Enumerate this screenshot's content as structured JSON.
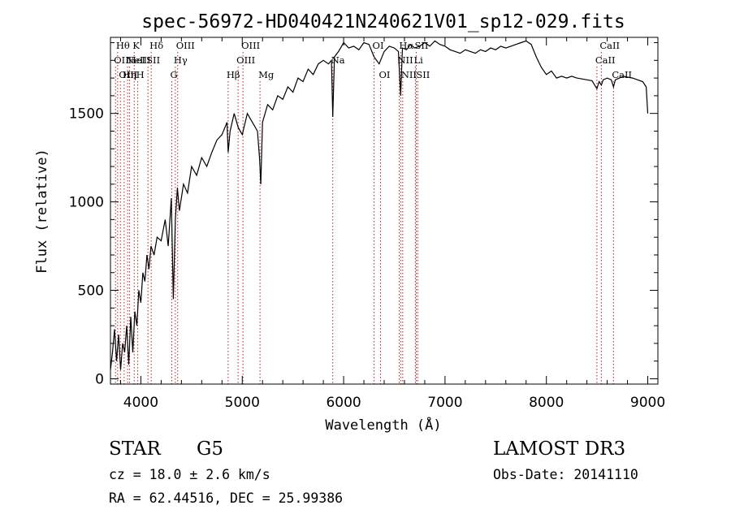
{
  "chart_data": {
    "type": "line",
    "title": "spec-56972-HD040421N240621V01_sp12-029.fits",
    "xlabel": "Wavelength (Å)",
    "ylabel": "Flux (relative)",
    "xlim": [
      3700,
      9100
    ],
    "ylim": [
      -30,
      1930
    ],
    "xticks": [
      4000,
      5000,
      6000,
      7000,
      8000,
      9000
    ],
    "yticks": [
      0,
      500,
      1000,
      1500
    ],
    "grid": false,
    "line_color": "#000000",
    "marker_color": "#b22222",
    "series": [
      {
        "x": [
          3700,
          3720,
          3740,
          3760,
          3780,
          3800,
          3820,
          3840,
          3860,
          3880,
          3900,
          3920,
          3940,
          3960,
          3980,
          4000,
          4020,
          4040,
          4060,
          4080,
          4100,
          4130,
          4160,
          4200,
          4240,
          4270,
          4300,
          4320,
          4340,
          4360,
          4380,
          4420,
          4460,
          4500,
          4550,
          4600,
          4650,
          4700,
          4750,
          4800,
          4850,
          4861,
          4880,
          4920,
          4960,
          5000,
          5050,
          5100,
          5150,
          5170,
          5183,
          5200,
          5250,
          5300,
          5350,
          5400,
          5450,
          5500,
          5550,
          5600,
          5650,
          5700,
          5750,
          5800,
          5850,
          5880,
          5893,
          5910,
          5950,
          6000,
          6050,
          6100,
          6150,
          6200,
          6250,
          6300,
          6350,
          6400,
          6450,
          6500,
          6540,
          6563,
          6580,
          6620,
          6660,
          6700,
          6750,
          6800,
          6850,
          6900,
          6950,
          7000,
          7050,
          7100,
          7150,
          7200,
          7250,
          7300,
          7350,
          7400,
          7450,
          7500,
          7550,
          7600,
          7650,
          7700,
          7750,
          7800,
          7850,
          7900,
          7950,
          8000,
          8050,
          8100,
          8150,
          8200,
          8250,
          8300,
          8350,
          8400,
          8450,
          8498,
          8520,
          8542,
          8560,
          8600,
          8640,
          8662,
          8680,
          8720,
          8760,
          8800,
          8850,
          8900,
          8950,
          8985,
          9000
        ],
        "y": [
          50,
          150,
          280,
          100,
          250,
          50,
          200,
          150,
          300,
          80,
          350,
          150,
          380,
          300,
          500,
          430,
          600,
          550,
          700,
          620,
          750,
          700,
          800,
          780,
          900,
          750,
          1020,
          450,
          900,
          1080,
          950,
          1100,
          1050,
          1200,
          1150,
          1250,
          1200,
          1280,
          1350,
          1380,
          1450,
          1280,
          1400,
          1500,
          1420,
          1380,
          1500,
          1450,
          1400,
          1250,
          1100,
          1450,
          1550,
          1520,
          1600,
          1580,
          1650,
          1620,
          1700,
          1680,
          1750,
          1720,
          1780,
          1800,
          1780,
          1800,
          1480,
          1820,
          1850,
          1900,
          1870,
          1880,
          1860,
          1900,
          1890,
          1820,
          1780,
          1850,
          1880,
          1870,
          1850,
          1600,
          1870,
          1860,
          1890,
          1870,
          1880,
          1900,
          1880,
          1910,
          1890,
          1880,
          1860,
          1850,
          1840,
          1860,
          1850,
          1840,
          1860,
          1850,
          1870,
          1860,
          1880,
          1870,
          1880,
          1890,
          1900,
          1910,
          1890,
          1820,
          1760,
          1720,
          1740,
          1700,
          1710,
          1700,
          1710,
          1700,
          1695,
          1690,
          1685,
          1640,
          1680,
          1660,
          1690,
          1700,
          1690,
          1650,
          1690,
          1700,
          1710,
          1705,
          1700,
          1690,
          1680,
          1650,
          1500
        ]
      }
    ],
    "markers": [
      {
        "x": 3750,
        "row": 1,
        "label": "OII"
      },
      {
        "x": 3771,
        "row": 0,
        "label": "Hθ"
      },
      {
        "x": 3798,
        "row": 2,
        "label": "OIII"
      },
      {
        "x": 3835,
        "row": 2,
        "label": "Hη"
      },
      {
        "x": 3869,
        "row": 1,
        "label": "NeIII"
      },
      {
        "x": 3889,
        "row": 1,
        "label": "HeI"
      },
      {
        "x": 3934,
        "row": 0,
        "label": "K"
      },
      {
        "x": 3969,
        "row": 2,
        "label": "H"
      },
      {
        "x": 4070,
        "row": 1,
        "label": "SII"
      },
      {
        "x": 4102,
        "row": 0,
        "label": "Hδ"
      },
      {
        "x": 4305,
        "row": 2,
        "label": "G"
      },
      {
        "x": 4340,
        "row": 1,
        "label": "Hγ"
      },
      {
        "x": 4363,
        "row": 0,
        "label": "OIII"
      },
      {
        "x": 4861,
        "row": 2,
        "label": "Hβ"
      },
      {
        "x": 4959,
        "row": 1,
        "label": "OIII"
      },
      {
        "x": 5007,
        "row": 0,
        "label": "OIII"
      },
      {
        "x": 5175,
        "row": 2,
        "label": "Mg"
      },
      {
        "x": 5893,
        "row": 1,
        "label": "Na"
      },
      {
        "x": 6300,
        "row": 0,
        "label": "OI"
      },
      {
        "x": 6364,
        "row": 2,
        "label": "OI"
      },
      {
        "x": 6548,
        "row": 1,
        "label": "NII"
      },
      {
        "x": 6563,
        "row": 0,
        "label": "Hα"
      },
      {
        "x": 6583,
        "row": 2,
        "label": "NII"
      },
      {
        "x": 6708,
        "row": 1,
        "label": "Li"
      },
      {
        "x": 6716,
        "row": 0,
        "label": "SII"
      },
      {
        "x": 6731,
        "row": 2,
        "label": "SII"
      },
      {
        "x": 8498,
        "row": 1,
        "label": "CaII"
      },
      {
        "x": 8542,
        "row": 0,
        "label": "CaII"
      },
      {
        "x": 8662,
        "row": 2,
        "label": "CaII"
      }
    ]
  },
  "info": {
    "object_class": "STAR",
    "subclass": "G5",
    "survey": "LAMOST DR3",
    "cz": "cz = 18.0 ± 2.6 km/s",
    "obs_date": "Obs-Date: 20141110",
    "radec": "RA =  62.44516, DEC =  25.99386"
  }
}
